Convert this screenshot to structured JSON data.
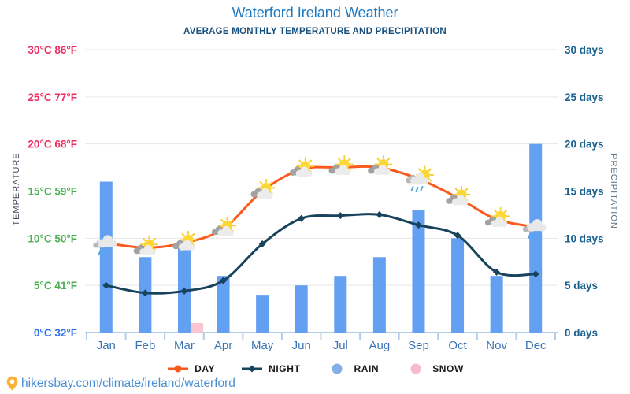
{
  "header": {
    "title": "Waterford Ireland Weather",
    "subtitle": "AVERAGE MONTHLY TEMPERATURE AND PRECIPITATION"
  },
  "axes": {
    "left_title": "TEMPERATURE",
    "right_title": "PRECIPITATION",
    "temp_ticks": [
      {
        "label": "30°C 86°F",
        "value": 30,
        "color": "#ee2f63"
      },
      {
        "label": "25°C 77°F",
        "value": 25,
        "color": "#ee2f63"
      },
      {
        "label": "20°C 68°F",
        "value": 20,
        "color": "#ee2f63"
      },
      {
        "label": "15°C 59°F",
        "value": 15,
        "color": "#4cb052"
      },
      {
        "label": "10°C 50°F",
        "value": 10,
        "color": "#4cb052"
      },
      {
        "label": "5°C 41°F",
        "value": 5,
        "color": "#4cb052"
      },
      {
        "label": "0°C 32°F",
        "value": 0,
        "color": "#2e6ff2"
      }
    ],
    "precip_ticks": [
      {
        "label": "30 days",
        "value": 30
      },
      {
        "label": "25 days",
        "value": 25
      },
      {
        "label": "20 days",
        "value": 20
      },
      {
        "label": "15 days",
        "value": 15
      },
      {
        "label": "10 days",
        "value": 10
      },
      {
        "label": "5 days",
        "value": 5
      },
      {
        "label": "0 days",
        "value": 0
      }
    ],
    "precip_tick_color": "#1a6191",
    "month_label_color": "#3a74b6",
    "gridline_color": "#e6e6e6",
    "axis_line_color": "#b3cde8"
  },
  "chart_data": {
    "type": "combo",
    "categories": [
      "Jan",
      "Feb",
      "Mar",
      "Apr",
      "May",
      "Jun",
      "Jul",
      "Aug",
      "Sep",
      "Oct",
      "Nov",
      "Dec"
    ],
    "series": [
      {
        "name": "DAY",
        "type": "line",
        "unit": "°C",
        "color": "#fb5a1c",
        "values": [
          9.5,
          9,
          9.5,
          11,
          15,
          17.3,
          17.5,
          17.5,
          16.3,
          14.3,
          12,
          11.2
        ]
      },
      {
        "name": "NIGHT",
        "type": "line",
        "unit": "°C",
        "color": "#17435c",
        "values": [
          5,
          4.2,
          4.4,
          5.5,
          9.4,
          12.1,
          12.4,
          12.5,
          11.4,
          10.3,
          6.4,
          6.2
        ]
      },
      {
        "name": "RAIN",
        "type": "bar",
        "unit": "days",
        "color": "#64a0f2",
        "values": [
          16,
          8,
          9,
          6,
          4,
          5,
          6,
          8,
          13,
          10,
          6,
          20
        ]
      },
      {
        "name": "SNOW",
        "type": "bar",
        "unit": "days",
        "color": "#f8c5d2",
        "values": [
          0,
          0,
          1,
          0,
          0,
          0,
          0,
          0,
          0,
          0,
          0,
          0
        ]
      }
    ],
    "icons": [
      "rain",
      "sun-cloud",
      "sun-cloud",
      "sun-cloud",
      "sun-cloud",
      "sun-cloud",
      "sun-cloud",
      "sun-cloud",
      "rain-sun",
      "sun-cloud",
      "sun-cloud",
      "rain"
    ],
    "temp_axis": {
      "min": 0,
      "max": 30,
      "step": 5
    },
    "precip_axis": {
      "min": 0,
      "max": 30,
      "step": 5
    },
    "grid": true,
    "legend_position": "bottom"
  },
  "legend": [
    {
      "label": "DAY",
      "marker": "line-dot",
      "color": "#fb5a1c"
    },
    {
      "label": "NIGHT",
      "marker": "line-diamond",
      "color": "#17435c"
    },
    {
      "label": "RAIN",
      "marker": "circle",
      "color": "#83aee8"
    },
    {
      "label": "SNOW",
      "marker": "circle",
      "color": "#f6bccd"
    }
  ],
  "footer": {
    "url": "hikersbay.com/climate/ireland/waterford"
  }
}
